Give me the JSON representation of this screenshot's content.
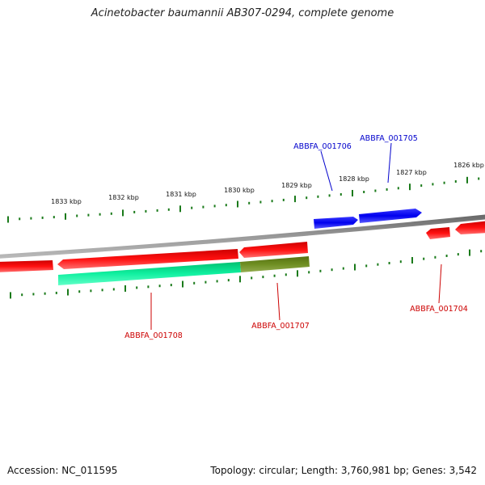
{
  "header": {
    "title": "Acinetobacter baumannii AB307-0294, complete genome"
  },
  "footer": {
    "accession": "Accession: NC_011595",
    "summary": "Topology: circular; Length: 3,760,981 bp; Genes: 3,542"
  },
  "scale_labels": [
    "1833 kbp",
    "1832 kbp",
    "1831 kbp",
    "1830 kbp",
    "1829 kbp",
    "1828 kbp",
    "1827 kbp",
    "1826 kbp"
  ],
  "genes": [
    {
      "name": "ABBFA_001706",
      "color": "#0000cc",
      "strand": "forward"
    },
    {
      "name": "ABBFA_001705",
      "color": "#0000cc",
      "strand": "forward"
    },
    {
      "name": "ABBFA_001708",
      "color": "#cc0000",
      "strand": "reverse"
    },
    {
      "name": "ABBFA_001707",
      "color": "#cc0000",
      "strand": "reverse"
    },
    {
      "name": "ABBFA_001704",
      "color": "#cc0000",
      "strand": "reverse"
    }
  ],
  "colors": {
    "forward_gene": "#0000ee",
    "reverse_gene": "#ee0000",
    "backbone": "#888888",
    "ticks": "#1a7a1a",
    "cds_track_a": "#00e89a",
    "cds_track_b": "#6b8a1e"
  }
}
